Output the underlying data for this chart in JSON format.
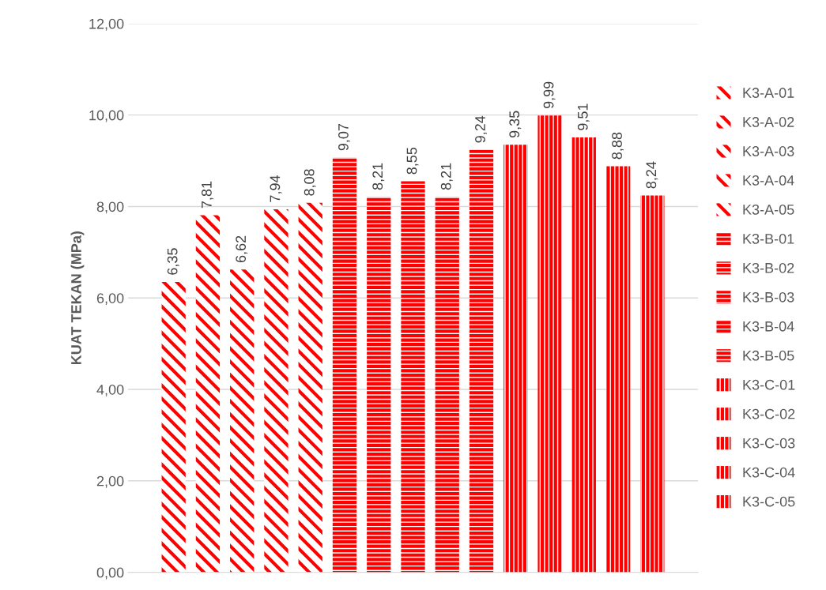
{
  "chart_data": {
    "type": "bar",
    "ylabel": "KUAT TEKAN (MPa)",
    "categories": [
      null
    ],
    "ylim": [
      0,
      12
    ],
    "yticks": [
      {
        "value": 0,
        "label": "0,00"
      },
      {
        "value": 2,
        "label": "2,00"
      },
      {
        "value": 4,
        "label": "4,00"
      },
      {
        "value": 6,
        "label": "6,00"
      },
      {
        "value": 8,
        "label": "8,00"
      },
      {
        "value": 10,
        "label": "10,00"
      },
      {
        "value": 12,
        "label": "12,00"
      }
    ],
    "grid": "y",
    "legend": "right",
    "series": [
      {
        "name": "K3-A-01",
        "color": "#ff0000",
        "values": [
          6.35
        ],
        "value_labels": [
          "6,35"
        ]
      },
      {
        "name": "K3-A-02",
        "color": "#ff0000",
        "values": [
          7.81
        ],
        "value_labels": [
          "7,81"
        ]
      },
      {
        "name": "K3-A-03",
        "color": "#ff0000",
        "values": [
          6.62
        ],
        "value_labels": [
          "6,62"
        ]
      },
      {
        "name": "K3-A-04",
        "color": "#ff0000",
        "values": [
          7.94
        ],
        "value_labels": [
          "7,94"
        ]
      },
      {
        "name": "K3-A-05",
        "color": "#ff0000",
        "values": [
          8.08
        ],
        "value_labels": [
          "8,08"
        ]
      },
      {
        "name": "K3-B-01",
        "color": "#ff0000",
        "values": [
          9.07
        ],
        "value_labels": [
          "9,07"
        ]
      },
      {
        "name": "K3-B-02",
        "color": "#ff0000",
        "values": [
          8.21
        ],
        "value_labels": [
          "8,21"
        ]
      },
      {
        "name": "K3-B-03",
        "color": "#ff0000",
        "values": [
          8.55
        ],
        "value_labels": [
          "8,55"
        ]
      },
      {
        "name": "K3-B-04",
        "color": "#ff0000",
        "values": [
          8.21
        ],
        "value_labels": [
          "8,21"
        ]
      },
      {
        "name": "K3-B-05",
        "color": "#ff0000",
        "values": [
          9.24
        ],
        "value_labels": [
          "9,24"
        ]
      },
      {
        "name": "K3-C-01",
        "color": "#ff0000",
        "values": [
          9.35
        ],
        "value_labels": [
          "9,35"
        ]
      },
      {
        "name": "K3-C-02",
        "color": "#ff0000",
        "values": [
          9.99
        ],
        "value_labels": [
          "9,99"
        ]
      },
      {
        "name": "K3-C-03",
        "color": "#ff0000",
        "values": [
          9.51
        ],
        "value_labels": [
          "9,51"
        ]
      },
      {
        "name": "K3-C-04",
        "color": "#ff0000",
        "values": [
          8.88
        ],
        "value_labels": [
          "8,88"
        ]
      },
      {
        "name": "K3-C-05",
        "color": "#ff0000",
        "values": [
          8.24
        ],
        "value_labels": [
          "8,24"
        ]
      }
    ]
  }
}
